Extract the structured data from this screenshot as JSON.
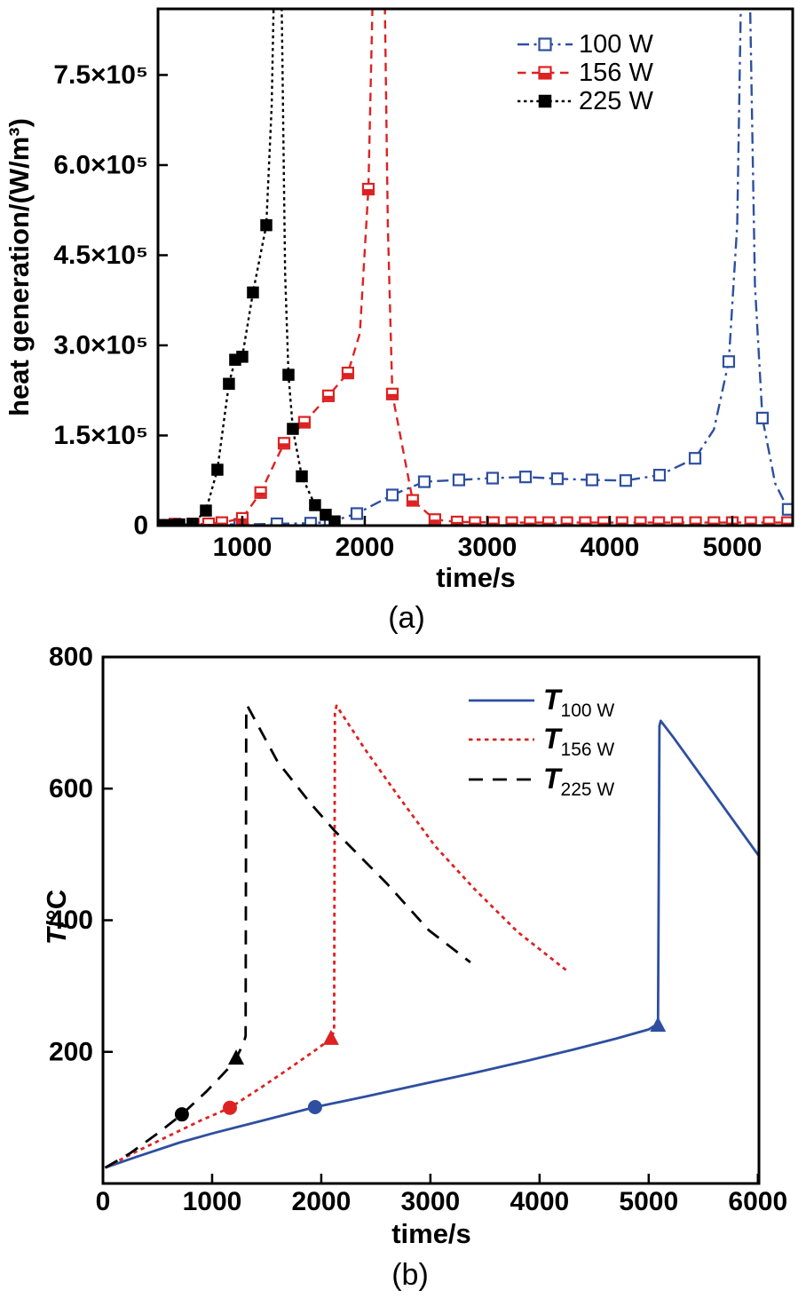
{
  "figure_colors": {
    "blue": "#2e4fa0",
    "red": "#dd2222",
    "black": "#000000",
    "background": "#ffffff"
  },
  "chart_data": [
    {
      "type": "line",
      "caption": "(a)",
      "xlabel": "time/s",
      "ylabel": "heat generation/(W/m³)",
      "xlim": [
        312,
        5493
      ],
      "ylim": [
        0,
        860000
      ],
      "grid": false,
      "legend_position": "top-right-inside",
      "xticks": [
        1000,
        2000,
        3000,
        4000,
        5000
      ],
      "yticks": [
        {
          "v": 0,
          "label": "0"
        },
        {
          "v": 150000,
          "label": "1.5×10⁵"
        },
        {
          "v": 300000,
          "label": "3.0×10⁵"
        },
        {
          "v": 450000,
          "label": "4.5×10⁵"
        },
        {
          "v": 600000,
          "label": "6.0×10⁵"
        },
        {
          "v": 750000,
          "label": "7.5×10⁵"
        }
      ],
      "series": [
        {
          "name": "100 W",
          "color": "#2e4fa0",
          "line_style": "dash-dot",
          "marker": "open-square",
          "points": [
            [
              312,
              1000
            ],
            [
              700,
              1500
            ],
            [
              1000,
              2000
            ],
            [
              1283,
              3000
            ],
            [
              1558,
              4000
            ],
            [
              1717,
              6000
            ],
            [
              1935,
              20000
            ],
            [
              2225,
              51000
            ],
            [
              2486,
              73000
            ],
            [
              2768,
              76000
            ],
            [
              3043,
              79000
            ],
            [
              3312,
              81000
            ],
            [
              3572,
              78000
            ],
            [
              3855,
              76000
            ],
            [
              4130,
              75000
            ],
            [
              4406,
              84000
            ],
            [
              4696,
              112000
            ],
            [
              4850,
              160000
            ],
            [
              4971,
              273000
            ],
            [
              5040,
              500000
            ],
            [
              5075,
              930000
            ],
            [
              5140,
              930000
            ],
            [
              5185,
              400000
            ],
            [
              5246,
              179000
            ],
            [
              5350,
              70000
            ],
            [
              5456,
              27000
            ],
            [
              5493,
              17000
            ]
          ],
          "markers": [
            [
              980,
              2000
            ],
            [
              1283,
              3000
            ],
            [
              1558,
              4000
            ],
            [
              1717,
              6000
            ],
            [
              1935,
              20000
            ],
            [
              2225,
              51000
            ],
            [
              2486,
              73000
            ],
            [
              2768,
              76000
            ],
            [
              3043,
              79000
            ],
            [
              3312,
              81000
            ],
            [
              3572,
              78000
            ],
            [
              3855,
              76000
            ],
            [
              4130,
              75000
            ],
            [
              4406,
              84000
            ],
            [
              4696,
              112000
            ],
            [
              4971,
              273000
            ],
            [
              5246,
              179000
            ],
            [
              5456,
              27000
            ]
          ]
        },
        {
          "name": "156 W",
          "color": "#dd2222",
          "line_style": "dashed",
          "marker": "half-filled-square",
          "points": [
            [
              312,
              2000
            ],
            [
              600,
              2500
            ],
            [
              725,
              3000
            ],
            [
              833,
              5000
            ],
            [
              1000,
              12000
            ],
            [
              1150,
              55000
            ],
            [
              1341,
              137000
            ],
            [
              1507,
              172000
            ],
            [
              1703,
              216000
            ],
            [
              1862,
              254000
            ],
            [
              1960,
              320000
            ],
            [
              2029,
              560000
            ],
            [
              2070,
              930000
            ],
            [
              2160,
              930000
            ],
            [
              2188,
              500000
            ],
            [
              2225,
              219000
            ],
            [
              2391,
              42000
            ],
            [
              2572,
              10000
            ],
            [
              2754,
              6000
            ],
            [
              3200,
              5000
            ],
            [
              4200,
              5000
            ],
            [
              5493,
              5000
            ]
          ],
          "markers": [
            [
              450,
              2500
            ],
            [
              600,
              2500
            ],
            [
              725,
              3000
            ],
            [
              833,
              5000
            ],
            [
              1000,
              12000
            ],
            [
              1150,
              55000
            ],
            [
              1341,
              137000
            ],
            [
              1507,
              172000
            ],
            [
              1703,
              216000
            ],
            [
              1862,
              254000
            ],
            [
              2029,
              560000
            ],
            [
              2225,
              219000
            ],
            [
              2391,
              42000
            ],
            [
              2572,
              10000
            ],
            [
              2754,
              6000
            ],
            [
              2900,
              5000
            ],
            [
              3050,
              5000
            ],
            [
              3200,
              5000
            ],
            [
              3350,
              5000
            ],
            [
              3500,
              5000
            ],
            [
              3650,
              5000
            ],
            [
              3800,
              5000
            ],
            [
              3950,
              5000
            ],
            [
              4100,
              5000
            ],
            [
              4250,
              5000
            ],
            [
              4400,
              5000
            ],
            [
              4550,
              5000
            ],
            [
              4700,
              5000
            ],
            [
              4850,
              5000
            ],
            [
              5000,
              5000
            ],
            [
              5150,
              5000
            ],
            [
              5300,
              5000
            ],
            [
              5450,
              5000
            ]
          ]
        },
        {
          "name": "225 W",
          "color": "#000000",
          "line_style": "dotted",
          "marker": "filled-square",
          "points": [
            [
              312,
              1000
            ],
            [
              500,
              1500
            ],
            [
              594,
              3000
            ],
            [
              703,
              25000
            ],
            [
              797,
              93000
            ],
            [
              891,
              236000
            ],
            [
              942,
              276000
            ],
            [
              1000,
              281000
            ],
            [
              1087,
              388000
            ],
            [
              1196,
              500000
            ],
            [
              1240,
              700000
            ],
            [
              1262,
              930000
            ],
            [
              1318,
              930000
            ],
            [
              1350,
              420000
            ],
            [
              1377,
              251000
            ],
            [
              1413,
              161000
            ],
            [
              1486,
              82000
            ],
            [
              1594,
              34000
            ],
            [
              1681,
              18000
            ],
            [
              1754,
              7000
            ],
            [
              1812,
              4000
            ]
          ],
          "markers": [
            [
              326,
              1000
            ],
            [
              399,
              1000
            ],
            [
              486,
              2000
            ],
            [
              594,
              3000
            ],
            [
              703,
              25000
            ],
            [
              797,
              93000
            ],
            [
              891,
              236000
            ],
            [
              942,
              276000
            ],
            [
              1000,
              281000
            ],
            [
              1087,
              388000
            ],
            [
              1196,
              500000
            ],
            [
              1377,
              251000
            ],
            [
              1413,
              161000
            ],
            [
              1486,
              82000
            ],
            [
              1594,
              34000
            ],
            [
              1681,
              18000
            ],
            [
              1754,
              7000
            ]
          ]
        }
      ]
    },
    {
      "type": "line",
      "caption": "(b)",
      "xlabel": "time/s",
      "ylabel": "T/°C",
      "ylabel_main": "T",
      "ylabel_rest": "/°C",
      "xlim": [
        0,
        6010
      ],
      "ylim": [
        0,
        800
      ],
      "grid": false,
      "legend_position": "top-right-inside",
      "xticks": [
        0,
        1000,
        2000,
        3000,
        4000,
        5000,
        6000
      ],
      "yticks": [
        {
          "v": 200,
          "label": "200"
        },
        {
          "v": 400,
          "label": "400"
        },
        {
          "v": 600,
          "label": "600"
        },
        {
          "v": 800,
          "label": "800"
        }
      ],
      "series": [
        {
          "name_main": "T",
          "name_sub": "100 W",
          "color": "#2e4fa0",
          "line_style": "solid",
          "points": [
            [
              20,
              24
            ],
            [
              300,
              40
            ],
            [
              700,
              62
            ],
            [
              1000,
              76
            ],
            [
              1400,
              93
            ],
            [
              1943,
              116
            ],
            [
              2400,
              132
            ],
            [
              2900,
              150
            ],
            [
              3400,
              168
            ],
            [
              3900,
              187
            ],
            [
              4300,
              203
            ],
            [
              4700,
              220
            ],
            [
              5000,
              234
            ],
            [
              5085,
              243
            ],
            [
              5098,
              695
            ],
            [
              5110,
              703
            ],
            [
              5230,
              677
            ],
            [
              5600,
              592
            ],
            [
              6008,
              498
            ]
          ],
          "point_markers": [
            {
              "shape": "circle",
              "x": 1943,
              "y": 116
            },
            {
              "shape": "triangle",
              "x": 5085,
              "y": 240
            }
          ]
        },
        {
          "name_main": "T",
          "name_sub": "156 W",
          "color": "#dd2222",
          "line_style": "short-dash",
          "points": [
            [
              20,
              24
            ],
            [
              300,
              48
            ],
            [
              600,
              72
            ],
            [
              900,
              96
            ],
            [
              1163,
              115
            ],
            [
              1450,
              146
            ],
            [
              1700,
              174
            ],
            [
              1950,
              203
            ],
            [
              2089,
              220
            ],
            [
              2118,
              232
            ],
            [
              2125,
              715
            ],
            [
              2140,
              726
            ],
            [
              2400,
              660
            ],
            [
              2700,
              590
            ],
            [
              3041,
              513
            ],
            [
              3400,
              448
            ],
            [
              3800,
              382
            ],
            [
              4260,
              322
            ]
          ],
          "point_markers": [
            {
              "shape": "circle",
              "x": 1163,
              "y": 115
            },
            {
              "shape": "triangle",
              "x": 2089,
              "y": 220
            }
          ]
        },
        {
          "name_main": "T",
          "name_sub": "225 W",
          "color": "#000000",
          "line_style": "long-dash",
          "points": [
            [
              20,
              24
            ],
            [
              250,
              46
            ],
            [
              500,
              76
            ],
            [
              723,
              105
            ],
            [
              950,
              140
            ],
            [
              1150,
              175
            ],
            [
              1220,
              190
            ],
            [
              1290,
              214
            ],
            [
              1307,
              224
            ],
            [
              1313,
              715
            ],
            [
              1322,
              726
            ],
            [
              1600,
              641
            ],
            [
              1900,
              578
            ],
            [
              2122,
              536
            ],
            [
              2600,
              456
            ],
            [
              2984,
              385
            ],
            [
              3366,
              336
            ]
          ],
          "point_markers": [
            {
              "shape": "circle",
              "x": 723,
              "y": 105
            },
            {
              "shape": "triangle",
              "x": 1220,
              "y": 190
            }
          ]
        }
      ]
    }
  ]
}
